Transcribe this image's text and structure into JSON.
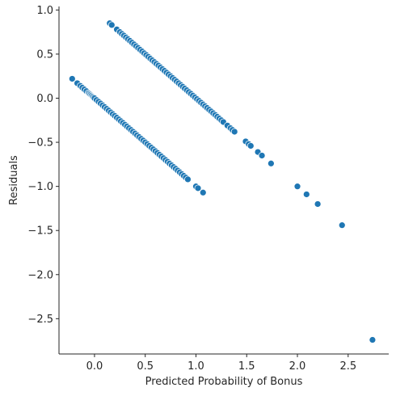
{
  "chart_data": {
    "type": "scatter",
    "title": "",
    "xlabel": "Predicted Probability of Bonus",
    "ylabel": "Residuals",
    "xlim": [
      -0.35,
      2.9
    ],
    "ylim": [
      -2.9,
      1.04
    ],
    "xticks": [
      0.0,
      0.5,
      1.0,
      1.5,
      2.0,
      2.5
    ],
    "xtick_labels": [
      "0.0",
      "0.5",
      "1.0",
      "1.5",
      "2.0",
      "2.5"
    ],
    "yticks": [
      1.0,
      0.5,
      0.0,
      -0.5,
      -1.0,
      -1.5,
      -2.0,
      -2.5
    ],
    "ytick_labels": [
      "1.0",
      "0.5",
      "0.0",
      "−0.5",
      "−1.0",
      "−1.5",
      "−2.0",
      "−2.5"
    ],
    "grid": false,
    "marker_color": "#1f77b4",
    "series": [
      {
        "x": [
          -0.22,
          -0.17,
          -0.14,
          -0.12,
          -0.1,
          -0.08,
          -0.06,
          -0.05,
          -0.04,
          -0.03,
          -0.02,
          -0.01,
          0.0,
          0.02,
          0.04,
          0.06,
          0.08,
          0.1,
          0.12,
          0.14,
          0.16,
          0.18,
          0.2,
          0.22,
          0.24,
          0.26,
          0.28,
          0.3,
          0.32,
          0.34,
          0.36,
          0.38,
          0.4,
          0.42,
          0.44,
          0.46,
          0.48,
          0.5,
          0.52,
          0.54,
          0.56,
          0.58,
          0.6,
          0.62,
          0.64,
          0.66,
          0.68,
          0.7,
          0.72,
          0.74,
          0.76,
          0.78,
          0.8,
          0.82,
          0.84,
          0.86,
          0.88,
          0.9,
          0.92,
          1.0,
          1.02,
          1.07
        ],
        "y": [
          0.22,
          0.17,
          0.14,
          0.12,
          0.1,
          0.08,
          0.06,
          0.05,
          0.04,
          0.03,
          0.02,
          0.01,
          0.0,
          -0.02,
          -0.04,
          -0.06,
          -0.08,
          -0.1,
          -0.12,
          -0.14,
          -0.16,
          -0.18,
          -0.2,
          -0.22,
          -0.24,
          -0.26,
          -0.28,
          -0.3,
          -0.32,
          -0.34,
          -0.36,
          -0.38,
          -0.4,
          -0.42,
          -0.44,
          -0.46,
          -0.48,
          -0.5,
          -0.52,
          -0.54,
          -0.56,
          -0.58,
          -0.6,
          -0.62,
          -0.64,
          -0.66,
          -0.68,
          -0.7,
          -0.72,
          -0.74,
          -0.76,
          -0.78,
          -0.8,
          -0.82,
          -0.84,
          -0.86,
          -0.88,
          -0.9,
          -0.92,
          -1.0,
          -1.02,
          -1.07
        ]
      },
      {
        "x": [
          0.15,
          0.17,
          0.22,
          0.25,
          0.27,
          0.29,
          0.31,
          0.33,
          0.35,
          0.37,
          0.39,
          0.41,
          0.43,
          0.45,
          0.47,
          0.49,
          0.51,
          0.53,
          0.55,
          0.57,
          0.59,
          0.61,
          0.63,
          0.65,
          0.67,
          0.69,
          0.71,
          0.73,
          0.75,
          0.77,
          0.79,
          0.81,
          0.83,
          0.85,
          0.87,
          0.89,
          0.91,
          0.93,
          0.95,
          0.97,
          0.99,
          1.01,
          1.03,
          1.05,
          1.07,
          1.09,
          1.11,
          1.13,
          1.15,
          1.17,
          1.19,
          1.21,
          1.23,
          1.25,
          1.27,
          1.31,
          1.34,
          1.36,
          1.38,
          1.49,
          1.52,
          1.54,
          1.61,
          1.65,
          1.74,
          2.0,
          2.09,
          2.2,
          2.44,
          2.74
        ],
        "y": [
          0.85,
          0.83,
          0.78,
          0.75,
          0.73,
          0.71,
          0.69,
          0.67,
          0.65,
          0.63,
          0.61,
          0.59,
          0.57,
          0.55,
          0.53,
          0.51,
          0.49,
          0.47,
          0.45,
          0.43,
          0.41,
          0.39,
          0.37,
          0.35,
          0.33,
          0.31,
          0.29,
          0.27,
          0.25,
          0.23,
          0.21,
          0.19,
          0.17,
          0.15,
          0.13,
          0.11,
          0.09,
          0.07,
          0.05,
          0.03,
          0.01,
          -0.01,
          -0.03,
          -0.05,
          -0.07,
          -0.09,
          -0.11,
          -0.13,
          -0.15,
          -0.17,
          -0.19,
          -0.21,
          -0.23,
          -0.25,
          -0.27,
          -0.31,
          -0.34,
          -0.36,
          -0.38,
          -0.49,
          -0.52,
          -0.54,
          -0.61,
          -0.65,
          -0.74,
          -1.0,
          -1.09,
          -1.2,
          -1.44,
          -2.74
        ]
      }
    ]
  }
}
